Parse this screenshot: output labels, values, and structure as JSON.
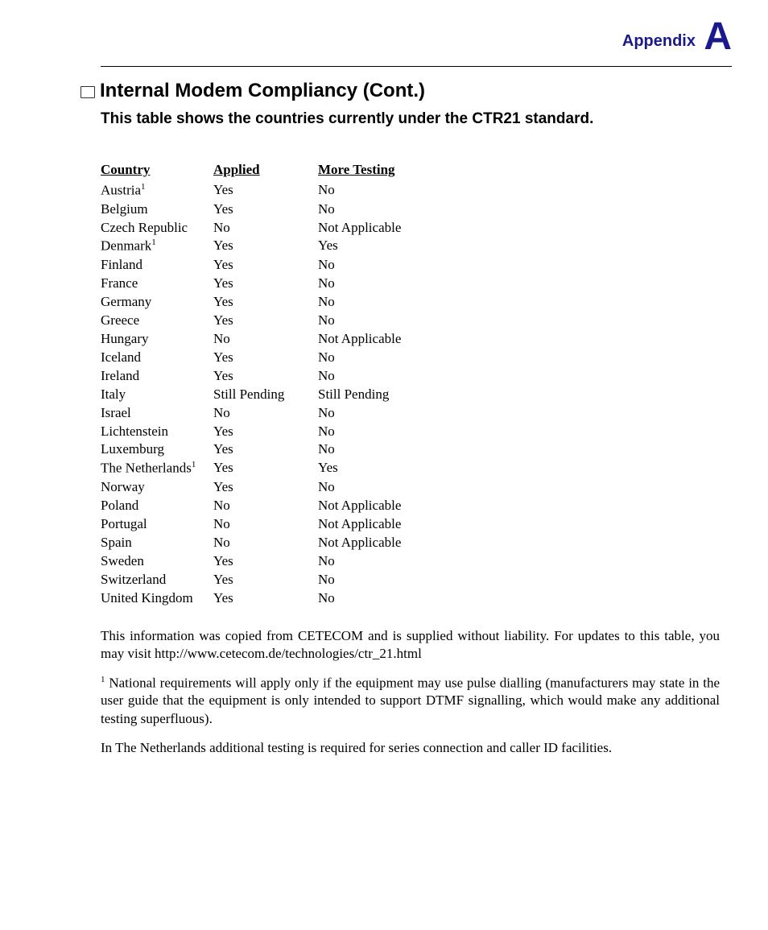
{
  "header": {
    "appendix_label": "Appendix",
    "appendix_letter": "A"
  },
  "title": "Internal Modem Compliancy (Cont.)",
  "subtitle": "This table shows the countries currently under the CTR21 standard.",
  "table": {
    "headers": {
      "country": "Country",
      "applied": "Applied",
      "more_testing": "More Testing"
    },
    "rows": [
      {
        "country": "Austria",
        "sup": "1",
        "applied": "Yes",
        "more": "No"
      },
      {
        "country": "Belgium",
        "sup": "",
        "applied": "Yes",
        "more": "No"
      },
      {
        "country": "Czech Republic",
        "sup": "",
        "applied": "No",
        "more": "Not Applicable"
      },
      {
        "country": "Denmark",
        "sup": "1",
        "applied": "Yes",
        "more": "Yes"
      },
      {
        "country": "Finland",
        "sup": "",
        "applied": "Yes",
        "more": "No"
      },
      {
        "country": "France",
        "sup": "",
        "applied": "Yes",
        "more": "No"
      },
      {
        "country": "Germany",
        "sup": "",
        "applied": "Yes",
        "more": "No"
      },
      {
        "country": "Greece",
        "sup": "",
        "applied": "Yes",
        "more": "No"
      },
      {
        "country": "Hungary",
        "sup": "",
        "applied": "No",
        "more": "Not Applicable"
      },
      {
        "country": "Iceland",
        "sup": "",
        "applied": "Yes",
        "more": "No"
      },
      {
        "country": "Ireland",
        "sup": "",
        "applied": "Yes",
        "more": "No"
      },
      {
        "country": "Italy",
        "sup": "",
        "applied": "Still Pending",
        "more": "Still Pending"
      },
      {
        "country": "Israel",
        "sup": "",
        "applied": "No",
        "more": "No"
      },
      {
        "country": "Lichtenstein",
        "sup": "",
        "applied": "Yes",
        "more": "No"
      },
      {
        "country": "Luxemburg",
        "sup": "",
        "applied": "Yes",
        "more": "No"
      },
      {
        "country": "The Netherlands",
        "sup": "1",
        "applied": "Yes",
        "more": "Yes"
      },
      {
        "country": "Norway",
        "sup": "",
        "applied": "Yes",
        "more": "No"
      },
      {
        "country": "Poland",
        "sup": "",
        "applied": "No",
        "more": "Not Applicable"
      },
      {
        "country": "Portugal",
        "sup": "",
        "applied": "No",
        "more": "Not Applicable"
      },
      {
        "country": "Spain",
        "sup": "",
        "applied": "No",
        "more": "Not Applicable"
      },
      {
        "country": "Sweden",
        "sup": "",
        "applied": "Yes",
        "more": "No"
      },
      {
        "country": "Switzerland",
        "sup": "",
        "applied": "Yes",
        "more": "No"
      },
      {
        "country": "United Kingdom",
        "sup": "",
        "applied": "Yes",
        "more": "No"
      }
    ]
  },
  "paragraphs": {
    "p1": "This information was copied from CETECOM and is supplied without liability. For updates to this table, you may visit http://www.cetecom.de/technologies/ctr_21.html",
    "p2_sup": "1",
    "p2": " National requirements will apply only if the equipment may use pulse dialling (manufacturers may state in the user guide that the equipment is only intended to support DTMF signalling, which would make any additional testing superfluous).",
    "p3": "In The Netherlands additional testing is required for series connection and caller ID facilities."
  },
  "colors": {
    "accent": "#1a1a8c",
    "text": "#000000",
    "background": "#ffffff"
  }
}
